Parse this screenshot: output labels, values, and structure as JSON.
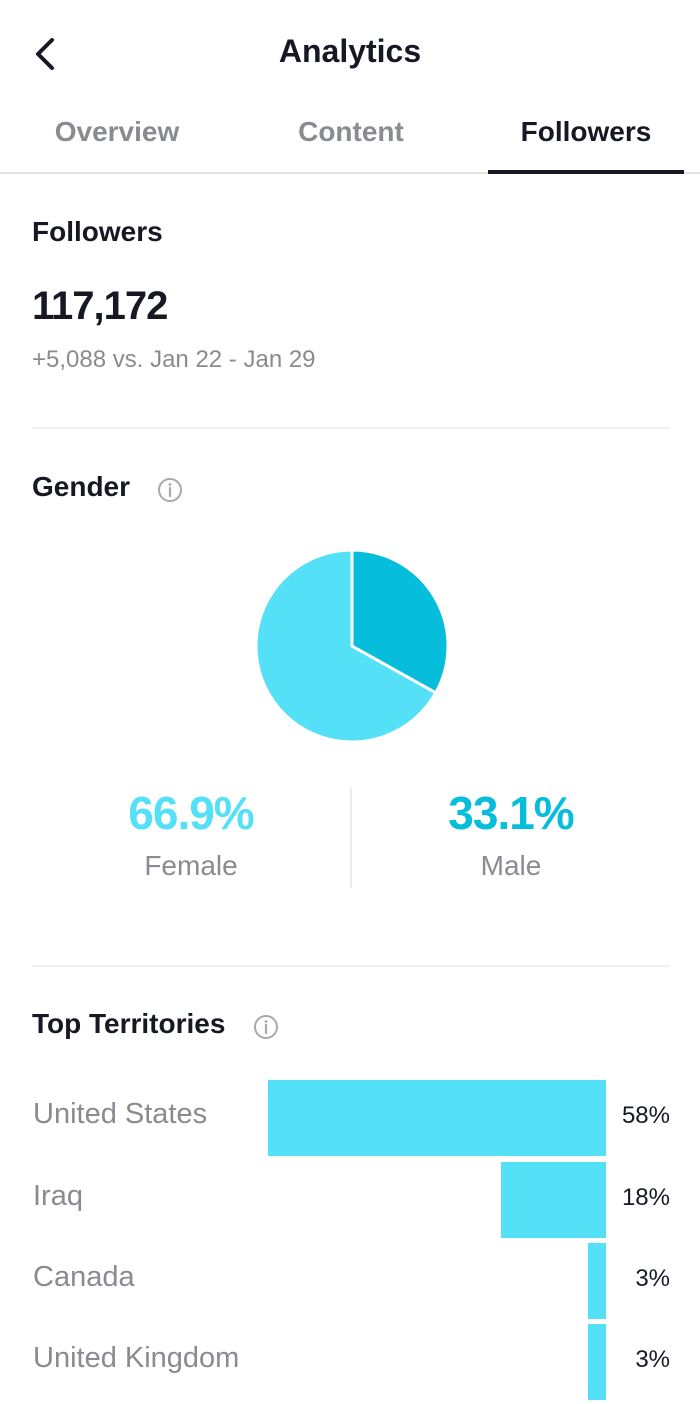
{
  "header": {
    "title": "Analytics",
    "back_icon": "chevron-left-icon"
  },
  "tabs": [
    {
      "label": "Overview",
      "active": false
    },
    {
      "label": "Content",
      "active": false
    },
    {
      "label": "Followers",
      "active": true
    }
  ],
  "followers": {
    "section_title": "Followers",
    "count": "117,172",
    "delta": "+5,088 vs. Jan 22 - Jan 29"
  },
  "gender": {
    "section_title": "Gender",
    "info_icon": "info-icon",
    "female": {
      "percent": "66.9%",
      "label": "Female",
      "value": 66.9,
      "color": "#54e0f6"
    },
    "male": {
      "percent": "33.1%",
      "label": "Male",
      "value": 33.1,
      "color": "#06bedb"
    }
  },
  "territories": {
    "section_title": "Top Territories",
    "info_icon": "info-icon",
    "bar_color": "#54e0f6",
    "items": [
      {
        "name": "United States",
        "percent": "58%",
        "value": 58
      },
      {
        "name": "Iraq",
        "percent": "18%",
        "value": 18
      },
      {
        "name": "Canada",
        "percent": "3%",
        "value": 3
      },
      {
        "name": "United Kingdom",
        "percent": "3%",
        "value": 3
      }
    ]
  }
}
